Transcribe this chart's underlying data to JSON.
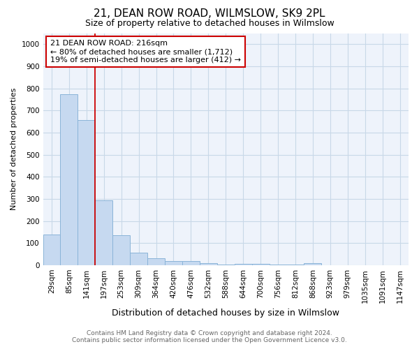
{
  "title": "21, DEAN ROW ROAD, WILMSLOW, SK9 2PL",
  "subtitle": "Size of property relative to detached houses in Wilmslow",
  "xlabel": "Distribution of detached houses by size in Wilmslow",
  "ylabel": "Number of detached properties",
  "footer_line1": "Contains HM Land Registry data © Crown copyright and database right 2024.",
  "footer_line2": "Contains public sector information licensed under the Open Government Licence v3.0.",
  "bar_labels": [
    "29sqm",
    "85sqm",
    "141sqm",
    "197sqm",
    "253sqm",
    "309sqm",
    "364sqm",
    "420sqm",
    "476sqm",
    "532sqm",
    "588sqm",
    "644sqm",
    "700sqm",
    "756sqm",
    "812sqm",
    "868sqm",
    "923sqm",
    "979sqm",
    "1035sqm",
    "1091sqm",
    "1147sqm"
  ],
  "bar_values": [
    140,
    775,
    657,
    295,
    135,
    57,
    33,
    20,
    18,
    9,
    4,
    5,
    5,
    4,
    4,
    10,
    0,
    0,
    0,
    0,
    0
  ],
  "bar_color": "#c6d9f0",
  "bar_edge_color": "#8ab4d8",
  "grid_color": "#c8d8e8",
  "background_color": "#ffffff",
  "plot_bg_color": "#eef3fb",
  "red_line_index": 2.5,
  "annotation_text": "21 DEAN ROW ROAD: 216sqm\n← 80% of detached houses are smaller (1,712)\n19% of semi-detached houses are larger (412) →",
  "annotation_box_color": "#ffffff",
  "annotation_border_color": "#cc0000",
  "ylim": [
    0,
    1050
  ],
  "yticks": [
    0,
    100,
    200,
    300,
    400,
    500,
    600,
    700,
    800,
    900,
    1000
  ],
  "title_fontsize": 11,
  "subtitle_fontsize": 9,
  "xlabel_fontsize": 9,
  "ylabel_fontsize": 8,
  "tick_fontsize": 7.5,
  "footer_fontsize": 6.5,
  "annotation_fontsize": 8
}
